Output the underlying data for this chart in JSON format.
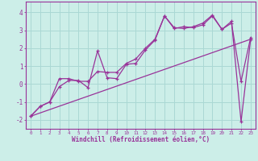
{
  "bg_color": "#cceee8",
  "line_color": "#993399",
  "xlabel": "Windchill (Refroidissement éolien,°C)",
  "xlim": [
    -0.5,
    23.5
  ],
  "ylim": [
    -2.5,
    4.6
  ],
  "yticks": [
    -2,
    -1,
    0,
    1,
    2,
    3,
    4
  ],
  "xticks": [
    0,
    1,
    2,
    3,
    4,
    5,
    6,
    7,
    8,
    9,
    10,
    11,
    12,
    13,
    14,
    15,
    16,
    17,
    18,
    19,
    20,
    21,
    22,
    23
  ],
  "line1_x": [
    0,
    1,
    2,
    3,
    4,
    5,
    6,
    7,
    8,
    9,
    10,
    11,
    12,
    13,
    14,
    15,
    16,
    17,
    18,
    19,
    20,
    21,
    22,
    23
  ],
  "line1_y": [
    -1.8,
    -1.25,
    -1.0,
    0.3,
    0.3,
    0.15,
    0.15,
    0.7,
    0.65,
    0.65,
    1.15,
    1.4,
    2.0,
    2.5,
    3.8,
    3.15,
    3.1,
    3.2,
    3.4,
    3.85,
    3.05,
    3.5,
    -2.1,
    2.5
  ],
  "line2_x": [
    0,
    1,
    2,
    3,
    4,
    5,
    6,
    7,
    8,
    9,
    10,
    11,
    12,
    13,
    14,
    15,
    16,
    17,
    18,
    19,
    20,
    21,
    22,
    23
  ],
  "line2_y": [
    -1.8,
    -1.25,
    -1.0,
    -0.15,
    0.2,
    0.2,
    -0.2,
    1.85,
    0.35,
    0.3,
    1.1,
    1.15,
    1.9,
    2.45,
    3.8,
    3.1,
    3.2,
    3.15,
    3.3,
    3.8,
    3.05,
    3.4,
    0.15,
    2.6
  ],
  "line3_x": [
    0,
    23
  ],
  "line3_y": [
    -1.8,
    2.5
  ],
  "grid_color": "#aad8d4"
}
